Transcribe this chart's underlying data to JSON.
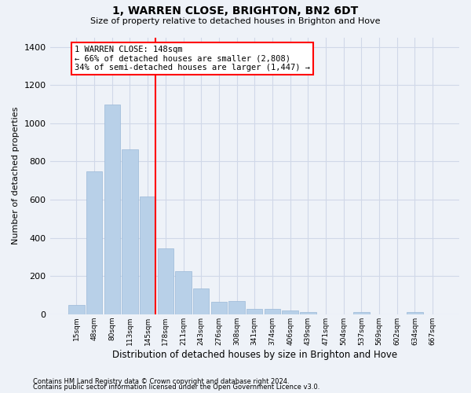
{
  "title": "1, WARREN CLOSE, BRIGHTON, BN2 6DT",
  "subtitle": "Size of property relative to detached houses in Brighton and Hove",
  "xlabel": "Distribution of detached houses by size in Brighton and Hove",
  "ylabel": "Number of detached properties",
  "footnote1": "Contains HM Land Registry data © Crown copyright and database right 2024.",
  "footnote2": "Contains public sector information licensed under the Open Government Licence v3.0.",
  "bar_labels": [
    "15sqm",
    "48sqm",
    "80sqm",
    "113sqm",
    "145sqm",
    "178sqm",
    "211sqm",
    "243sqm",
    "276sqm",
    "308sqm",
    "341sqm",
    "374sqm",
    "406sqm",
    "439sqm",
    "471sqm",
    "504sqm",
    "537sqm",
    "569sqm",
    "602sqm",
    "634sqm",
    "667sqm"
  ],
  "bar_values": [
    50,
    750,
    1100,
    865,
    615,
    345,
    225,
    135,
    65,
    70,
    30,
    30,
    20,
    12,
    0,
    0,
    12,
    0,
    0,
    12,
    0
  ],
  "bar_color": "#b8d0e8",
  "bar_edge_color": "#9ab8d8",
  "grid_color": "#d0d8e8",
  "background_color": "#eef2f8",
  "vline_color": "red",
  "vline_index": 4,
  "annotation_text": "1 WARREN CLOSE: 148sqm\n← 66% of detached houses are smaller (2,808)\n34% of semi-detached houses are larger (1,447) →",
  "annotation_box_color": "red",
  "ylim": [
    0,
    1450
  ],
  "yticks": [
    0,
    200,
    400,
    600,
    800,
    1000,
    1200,
    1400
  ]
}
